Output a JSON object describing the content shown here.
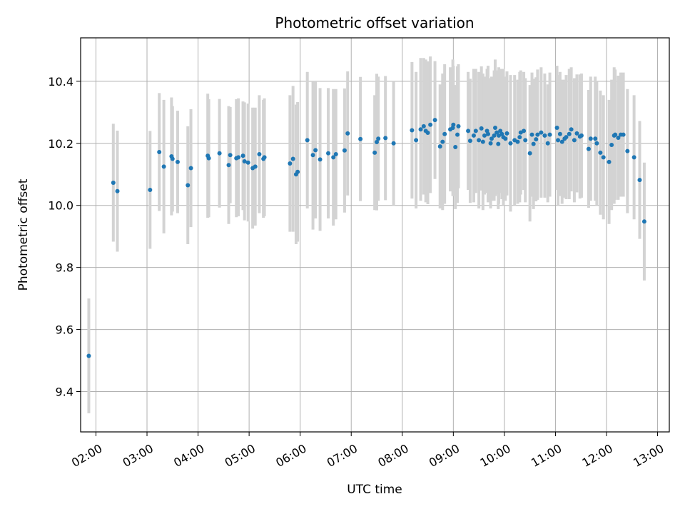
{
  "chart_data": {
    "type": "scatter",
    "title": "Photometric offset variation",
    "xlabel": "UTC time",
    "ylabel": "Photometric offset",
    "grid": true,
    "xlim": [
      1.7,
      13.23
    ],
    "ylim": [
      9.27,
      10.54
    ],
    "x_ticks": [
      2,
      3,
      4,
      5,
      6,
      7,
      8,
      9,
      10,
      11,
      12,
      13
    ],
    "x_tick_labels": [
      "02:00",
      "03:00",
      "04:00",
      "05:00",
      "06:00",
      "07:00",
      "08:00",
      "09:00",
      "10:00",
      "11:00",
      "12:00",
      "13:00"
    ],
    "y_ticks": [
      9.4,
      9.6,
      9.8,
      10.0,
      10.2,
      10.4
    ],
    "y_tick_labels": [
      "9.4",
      "9.6",
      "9.8",
      "10.0",
      "10.2",
      "10.4"
    ],
    "colors": {
      "point": "#1f77b4",
      "errorbar": "#d3d3d3",
      "grid": "#b0b0b0"
    },
    "series": [
      {
        "x": [
          1.86,
          2.34,
          2.42,
          3.06,
          3.24,
          3.33,
          3.48,
          3.5,
          3.6,
          3.8,
          3.86,
          4.19,
          4.21,
          4.42,
          4.6,
          4.63,
          4.75,
          4.79,
          4.88,
          4.91,
          4.98,
          5.07,
          5.12,
          5.2,
          5.28,
          5.3,
          5.8,
          5.86,
          5.92,
          5.95,
          6.14,
          6.25,
          6.3,
          6.39,
          6.55,
          6.65,
          6.7,
          6.87,
          6.93,
          7.18,
          7.46,
          7.5,
          7.53,
          7.67,
          7.83,
          8.19,
          8.27,
          8.36,
          8.42,
          8.46,
          8.5,
          8.55,
          8.64,
          8.74,
          8.79,
          8.83,
          8.94,
          8.99,
          9.0,
          9.04,
          9.08,
          9.1,
          9.29,
          9.33,
          9.4,
          9.44,
          9.5,
          9.55,
          9.58,
          9.61,
          9.66,
          9.68,
          9.73,
          9.75,
          9.8,
          9.82,
          9.85,
          9.88,
          9.89,
          9.92,
          9.95,
          9.98,
          10.02,
          10.05,
          10.12,
          10.2,
          10.26,
          10.3,
          10.32,
          10.38,
          10.41,
          10.5,
          10.54,
          10.57,
          10.62,
          10.65,
          10.72,
          10.79,
          10.85,
          10.89,
          11.03,
          11.05,
          11.09,
          11.13,
          11.18,
          11.21,
          11.27,
          11.31,
          11.37,
          11.42,
          11.48,
          11.51,
          11.65,
          11.69,
          11.78,
          11.81,
          11.88,
          11.94,
          12.05,
          12.1,
          12.15,
          12.17,
          12.23,
          12.28,
          12.33,
          12.41,
          12.54,
          12.65,
          12.74
        ],
        "y": [
          9.515,
          10.073,
          10.046,
          10.05,
          10.172,
          10.125,
          10.158,
          10.15,
          10.14,
          10.065,
          10.12,
          10.16,
          10.152,
          10.168,
          10.13,
          10.162,
          10.152,
          10.155,
          10.16,
          10.142,
          10.138,
          10.12,
          10.125,
          10.165,
          10.15,
          10.155,
          10.135,
          10.15,
          10.1,
          10.108,
          10.21,
          10.162,
          10.178,
          10.148,
          10.168,
          10.155,
          10.165,
          10.177,
          10.232,
          10.214,
          10.17,
          10.204,
          10.215,
          10.217,
          10.2,
          10.242,
          10.21,
          10.245,
          10.255,
          10.24,
          10.234,
          10.26,
          10.275,
          10.19,
          10.205,
          10.23,
          10.245,
          10.25,
          10.26,
          10.188,
          10.228,
          10.255,
          10.24,
          10.208,
          10.225,
          10.24,
          10.21,
          10.248,
          10.205,
          10.225,
          10.24,
          10.23,
          10.2,
          10.215,
          10.225,
          10.25,
          10.235,
          10.198,
          10.225,
          10.24,
          10.23,
          10.22,
          10.215,
          10.232,
          10.2,
          10.21,
          10.205,
          10.22,
          10.235,
          10.24,
          10.21,
          10.168,
          10.228,
          10.198,
          10.213,
          10.228,
          10.235,
          10.225,
          10.2,
          10.228,
          10.25,
          10.21,
          10.23,
          10.205,
          10.215,
          10.22,
          10.23,
          10.245,
          10.21,
          10.232,
          10.222,
          10.225,
          10.182,
          10.215,
          10.215,
          10.2,
          10.17,
          10.155,
          10.14,
          10.195,
          10.225,
          10.228,
          10.218,
          10.228,
          10.228,
          10.175,
          10.155,
          10.082,
          9.948
        ],
        "err": [
          0.185,
          0.19,
          0.195,
          0.19,
          0.19,
          0.215,
          0.19,
          0.17,
          0.165,
          0.19,
          0.19,
          0.2,
          0.19,
          0.175,
          0.19,
          0.155,
          0.19,
          0.19,
          0.175,
          0.19,
          0.19,
          0.195,
          0.19,
          0.19,
          0.19,
          0.19,
          0.22,
          0.235,
          0.225,
          0.225,
          0.22,
          0.24,
          0.22,
          0.23,
          0.21,
          0.22,
          0.21,
          0.2,
          0.2,
          0.2,
          0.185,
          0.22,
          0.2,
          0.2,
          0.2,
          0.22,
          0.22,
          0.23,
          0.22,
          0.23,
          0.23,
          0.22,
          0.19,
          0.2,
          0.22,
          0.225,
          0.2,
          0.22,
          0.19,
          0.2,
          0.22,
          0.2,
          0.19,
          0.2,
          0.215,
          0.2,
          0.22,
          0.2,
          0.22,
          0.19,
          0.2,
          0.22,
          0.21,
          0.2,
          0.21,
          0.22,
          0.2,
          0.21,
          0.22,
          0.2,
          0.21,
          0.22,
          0.2,
          0.2,
          0.22,
          0.21,
          0.2,
          0.21,
          0.2,
          0.19,
          0.2,
          0.22,
          0.2,
          0.21,
          0.2,
          0.21,
          0.21,
          0.2,
          0.19,
          0.2,
          0.2,
          0.21,
          0.2,
          0.2,
          0.19,
          0.2,
          0.21,
          0.2,
          0.2,
          0.19,
          0.2,
          0.2,
          0.19,
          0.2,
          0.2,
          0.2,
          0.2,
          0.2,
          0.2,
          0.21,
          0.22,
          0.21,
          0.2,
          0.2,
          0.2,
          0.2,
          0.2,
          0.19,
          0.19
        ]
      }
    ]
  }
}
